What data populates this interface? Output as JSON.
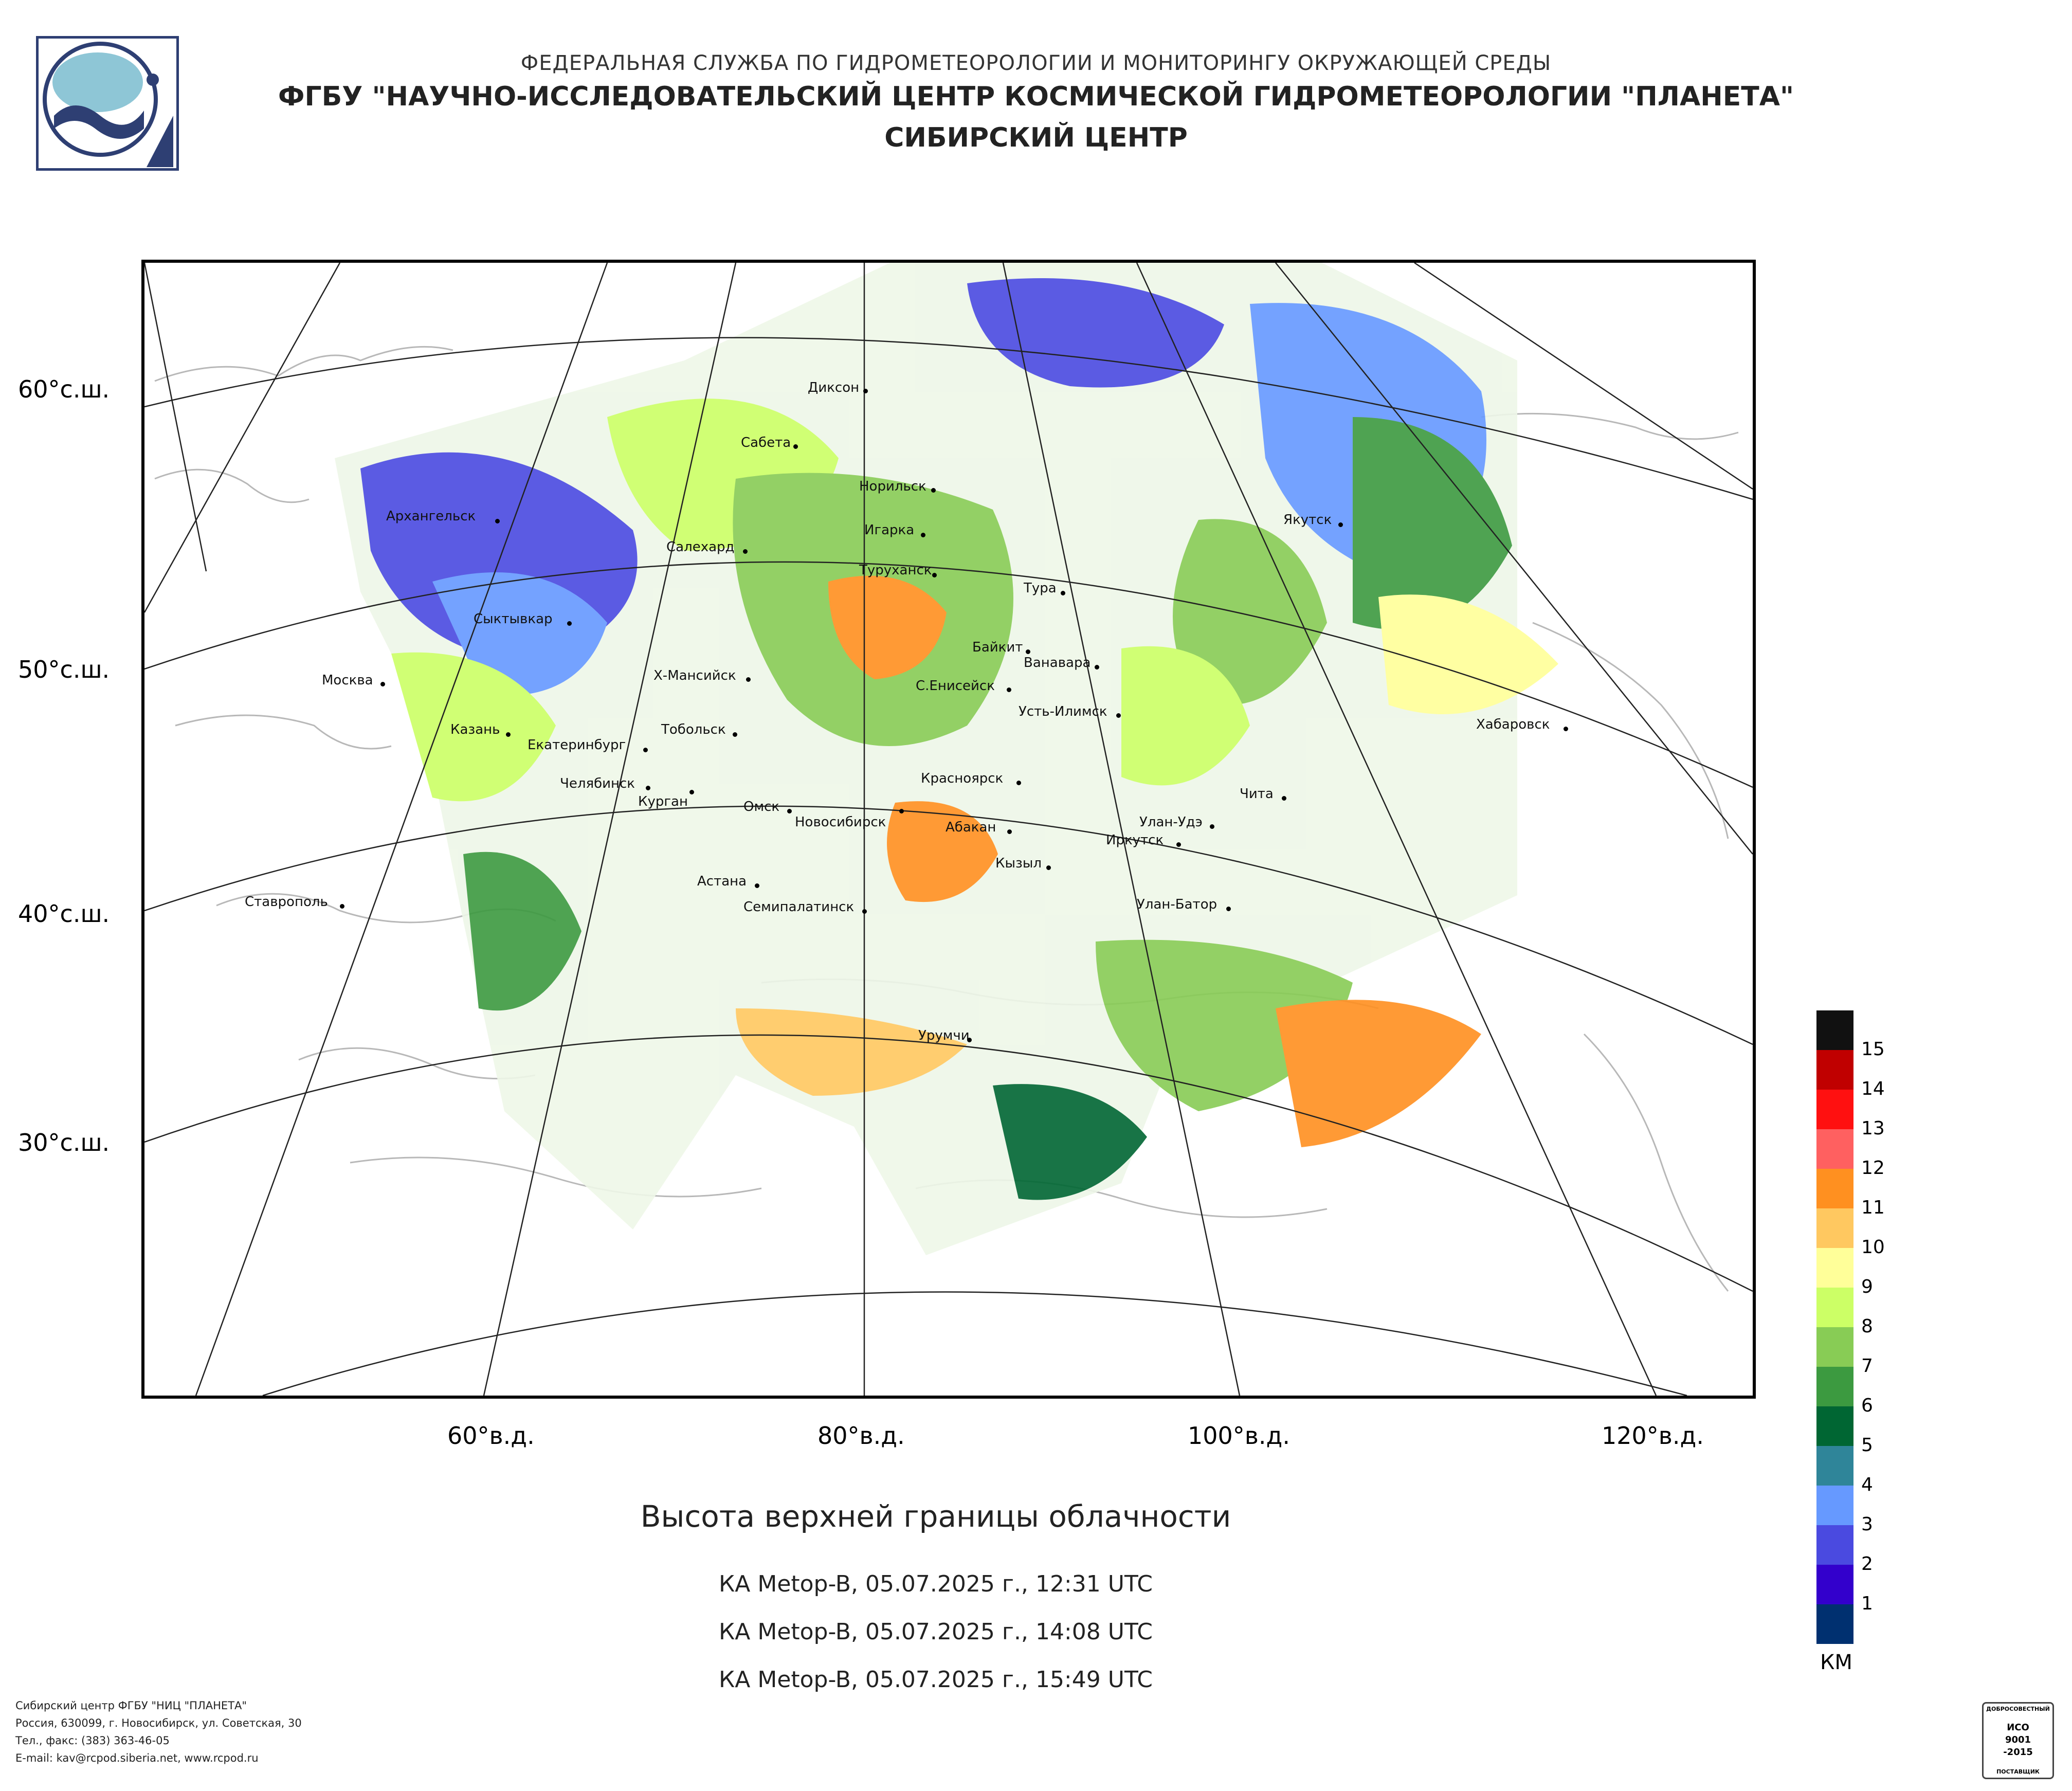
{
  "header": {
    "line1": "ФЕДЕРАЛЬНАЯ СЛУЖБА ПО ГИДРОМЕТЕОРОЛОГИИ И МОНИТОРИНГУ ОКРУЖАЮЩЕЙ СРЕДЫ",
    "line2": "ФГБУ \"НАУЧНО-ИССЛЕДОВАТЕЛЬСКИЙ ЦЕНТР КОСМИЧЕСКОЙ ГИДРОМЕТЕОРОЛОГИИ \"ПЛАНЕТА\"",
    "line3": "СИБИРСКИЙ ЦЕНТР"
  },
  "map": {
    "lat_labels": [
      "60°с.ш.",
      "50°с.ш.",
      "40°с.ш.",
      "30°с.ш."
    ],
    "lon_labels": [
      "60°в.д.",
      "80°в.д.",
      "100°в.д.",
      "120°в.д."
    ],
    "cities": [
      "Диксон",
      "Сабета",
      "Норильск",
      "Игарка",
      "Архангельск",
      "Салехард",
      "Туруханск",
      "Тура",
      "Якутск",
      "Сыктывкар",
      "Байкит",
      "Ванавара",
      "Москва",
      "Х-Мансийск",
      "С.Енисейск",
      "Усть-Илимск",
      "Казань",
      "Тобольск",
      "Екатеринбург",
      "Хабаровск",
      "Челябинск",
      "Курган",
      "Красноярск",
      "Чита",
      "Омск",
      "Новосибирск",
      "Абакан",
      "Улан-Удэ",
      "Иркутск",
      "Кызыл",
      "Астана",
      "Семипалатинск",
      "Улан-Батор",
      "Ставрополь",
      "Урумчи"
    ]
  },
  "caption": {
    "title": "Высота верхней границы облачности",
    "passes": [
      "КА Metop-B, 05.07.2025 г., 12:31 UTC",
      "КА Metop-B, 05.07.2025 г., 14:08 UTC",
      "КА Metop-B, 05.07.2025 г., 15:49 UTC"
    ]
  },
  "legend": {
    "units": "КМ",
    "levels": [
      {
        "label": "15",
        "color": "#111111"
      },
      {
        "label": "14",
        "color": "#c00000"
      },
      {
        "label": "13",
        "color": "#ff1010"
      },
      {
        "label": "12",
        "color": "#ff6060"
      },
      {
        "label": "11",
        "color": "#ff9020"
      },
      {
        "label": "10",
        "color": "#ffc860"
      },
      {
        "label": "9",
        "color": "#ffff99"
      },
      {
        "label": "8",
        "color": "#ccff66"
      },
      {
        "label": "7",
        "color": "#88cc55"
      },
      {
        "label": "6",
        "color": "#3c9a40"
      },
      {
        "label": "5",
        "color": "#006633"
      },
      {
        "label": "4",
        "color": "#2f8599"
      },
      {
        "label": "3",
        "color": "#6699ff"
      },
      {
        "label": "2",
        "color": "#4a4ae0"
      },
      {
        "label": "1",
        "color": "#3300cc"
      },
      {
        "label": "",
        "color": "#003070"
      }
    ]
  },
  "footer": {
    "lines": [
      "Сибирский центр ФГБУ \"НИЦ \"ПЛАНЕТА\"",
      "Россия, 630099, г. Новосибирск, ул. Советская, 30",
      "Тел., факс: (383) 363-46-05",
      "E-mail: kav@rcpod.siberia.net, www.rcpod.ru"
    ],
    "certificate": {
      "top": "ДОБРОСОВЕСТНЫЙ",
      "line1": "ИСО",
      "line2": "9001",
      "line3": "-2015",
      "bottom": "ПОСТАВЩИК"
    }
  }
}
